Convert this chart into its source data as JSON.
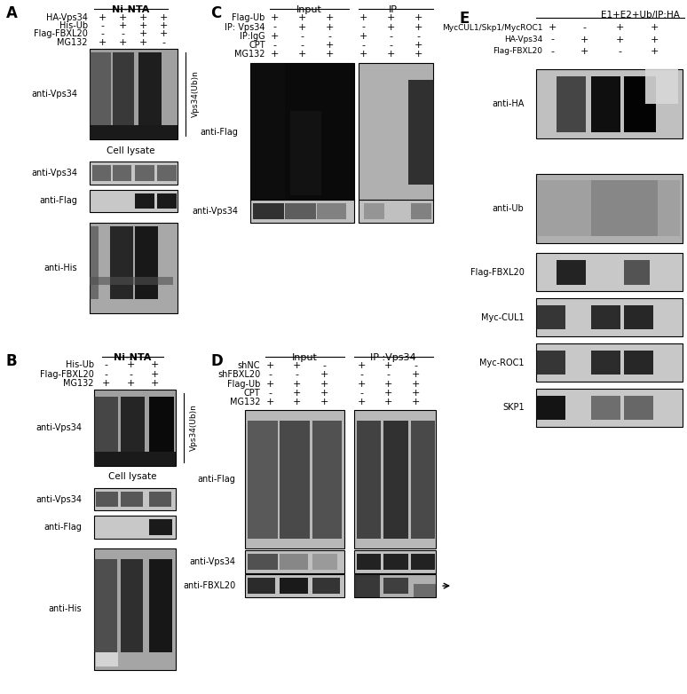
{
  "panel_A": {
    "label": "A",
    "title": "Ni-NTA",
    "rows": [
      "HA-Vps34",
      "His-Ub",
      "Flag-FBXL20",
      "MG132"
    ],
    "signs": [
      [
        "+",
        "+",
        "+",
        "+"
      ],
      [
        "-",
        "+",
        "+",
        "+"
      ],
      [
        "-",
        "-",
        "+",
        "+"
      ],
      [
        "+",
        "+",
        "+",
        "-"
      ]
    ]
  },
  "panel_B": {
    "label": "B",
    "title": "Ni-NTA",
    "rows": [
      "His-Ub",
      "Flag-FBXL20",
      "MG132"
    ],
    "signs": [
      [
        "-",
        "+",
        "+"
      ],
      [
        "-",
        "-",
        "+"
      ],
      [
        "+",
        "+",
        "+"
      ]
    ]
  },
  "panel_C": {
    "label": "C",
    "group1": "Input",
    "group2": "IP",
    "rows": [
      "Flag-Ub",
      "IP: Vps34",
      "IP:IgG",
      "CPT",
      "MG132"
    ],
    "signs": [
      [
        "+",
        "+",
        "+",
        "+",
        "+",
        "+"
      ],
      [
        "-",
        "+",
        "+",
        "-",
        "+",
        "+"
      ],
      [
        "+",
        "-",
        "-",
        "+",
        "-",
        "-"
      ],
      [
        "-",
        "-",
        "+",
        "-",
        "-",
        "+"
      ],
      [
        "+",
        "+",
        "+",
        "+",
        "+",
        "+"
      ]
    ]
  },
  "panel_D": {
    "label": "D",
    "group1": "Input",
    "group2": "IP :Vps34",
    "rows": [
      "shNC",
      "shFBXL20",
      "Flag-Ub",
      "CPT",
      "MG132"
    ],
    "signs": [
      [
        "+",
        "+",
        "-",
        "+",
        "+",
        "-"
      ],
      [
        "-",
        "-",
        "+",
        "-",
        "-",
        "+"
      ],
      [
        "+",
        "+",
        "+",
        "+",
        "+",
        "+"
      ],
      [
        "-",
        "+",
        "+",
        "-",
        "+",
        "+"
      ],
      [
        "+",
        "+",
        "+",
        "+",
        "+",
        "+"
      ]
    ]
  },
  "panel_E": {
    "label": "E",
    "title": "E1+E2+Ub/IP:HA",
    "rows": [
      "MycCUL1/Skp1/MycROC1",
      "HA-Vps34",
      "Flag-FBXL20"
    ],
    "signs": [
      [
        "+",
        "-",
        "+",
        "+"
      ],
      [
        "-",
        "+",
        "+",
        "+"
      ],
      [
        "-",
        "+",
        "-",
        "+"
      ]
    ]
  },
  "bg_color": "#ffffff"
}
